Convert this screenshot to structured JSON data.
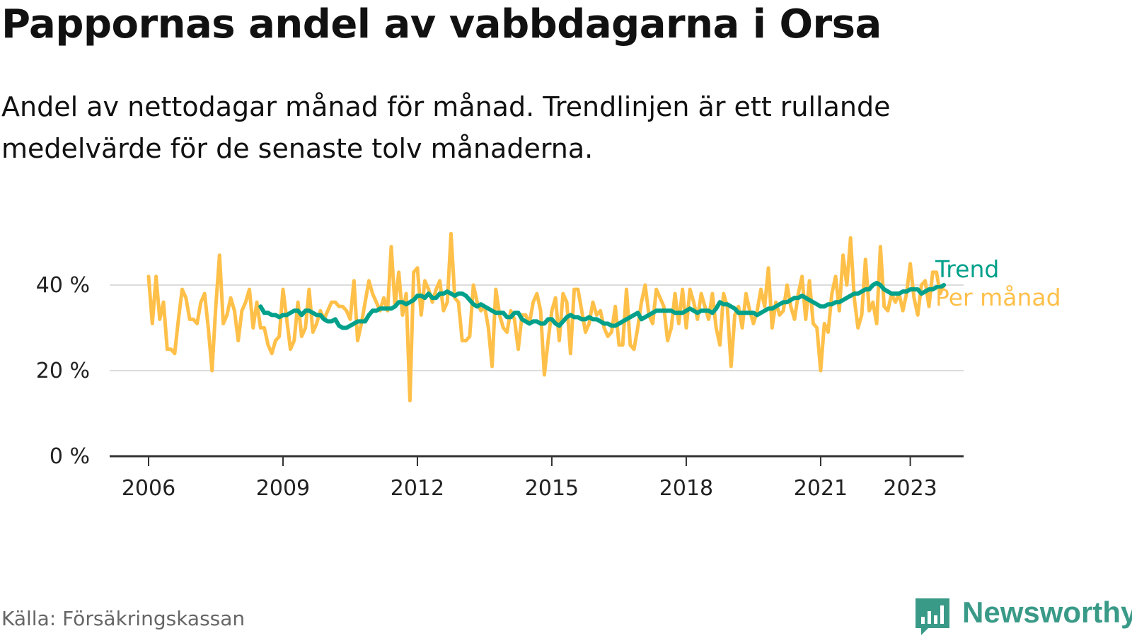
{
  "title": "Pappornas andel av vabbdagarna i Orsa",
  "subtitle": "Andel av nettodagar månad för månad. Trendlinjen är ett rullande medelvärde för de senaste tolv månaderna.",
  "source": "Källa: Försäkringskassan",
  "brand": {
    "name": "Newsworthy",
    "icon": "bar-chart-speech-bubble-icon",
    "color": "#3a9a88"
  },
  "chart_data": {
    "type": "line",
    "x_start": "2006-01",
    "x_end": "2023-07",
    "x_ticks": [
      "2006",
      "2009",
      "2012",
      "2015",
      "2018",
      "2021",
      "2023"
    ],
    "y_ticks": [
      "0 %",
      "20 %",
      "40 %"
    ],
    "ylim": [
      0,
      40
    ],
    "grid": true,
    "legend_placement": "line-end-right",
    "series": [
      {
        "name": "Per månad",
        "color": "#ffc04a",
        "values": [
          42,
          31,
          42,
          32,
          36,
          25,
          25,
          24,
          32,
          39,
          37,
          32,
          32,
          31,
          36,
          38,
          30,
          20,
          35,
          47,
          31,
          33,
          37,
          34,
          27,
          34,
          36,
          39,
          30,
          36,
          30,
          30,
          26,
          24,
          27,
          28,
          39,
          32,
          25,
          27,
          36,
          28,
          30,
          39,
          29,
          31,
          34,
          32,
          34,
          36,
          36,
          35,
          35,
          34,
          32,
          41,
          27,
          31,
          36,
          41,
          38,
          36,
          34,
          37,
          34,
          49,
          35,
          43,
          33,
          38,
          13,
          43,
          44,
          33,
          41,
          39,
          36,
          39,
          41,
          34,
          36,
          52,
          37,
          36,
          27,
          27,
          28,
          40,
          36,
          34,
          35,
          30,
          21,
          39,
          33,
          30,
          29,
          34,
          32,
          25,
          33,
          33,
          31,
          36,
          38,
          34,
          19,
          27,
          34,
          37,
          27,
          38,
          36,
          24,
          39,
          39,
          34,
          29,
          31,
          36,
          33,
          34,
          30,
          28,
          29,
          35,
          26,
          26,
          39,
          26,
          25,
          30,
          36,
          40,
          33,
          31,
          39,
          37,
          35,
          27,
          30,
          38,
          31,
          39,
          30,
          39,
          36,
          32,
          38,
          35,
          32,
          38,
          30,
          26,
          38,
          35,
          21,
          33,
          35,
          30,
          38,
          34,
          31,
          34,
          39,
          35,
          44,
          30,
          36,
          33,
          34,
          40,
          35,
          32,
          38,
          42,
          32,
          41,
          31,
          30,
          20,
          31,
          29,
          38,
          42,
          34,
          47,
          40,
          51,
          37,
          30,
          33,
          46,
          34,
          36,
          31,
          49,
          35,
          34,
          38,
          36,
          38,
          34,
          38,
          45,
          37,
          33,
          40,
          41,
          35,
          43,
          43,
          38,
          40
        ]
      },
      {
        "name": "Trend",
        "color": "#00a08a",
        "values": [
          35,
          33.5,
          33.5,
          33,
          33,
          32.5,
          33,
          33,
          33.5,
          34,
          34,
          33,
          34,
          34,
          33.5,
          33,
          33,
          32,
          31.5,
          31.5,
          32,
          30.5,
          30,
          30,
          30.5,
          31,
          31.5,
          31.5,
          31.5,
          33,
          34,
          34,
          34.5,
          34.5,
          34.5,
          34.5,
          35,
          36,
          36,
          35.5,
          36,
          36.5,
          37.5,
          37.5,
          37,
          38,
          37,
          37,
          38,
          38,
          38.5,
          38,
          37.5,
          38,
          38,
          37.5,
          36.5,
          35.5,
          35,
          35.5,
          35,
          34.5,
          34,
          33.5,
          33.5,
          33.5,
          32.5,
          32.5,
          33.5,
          33.5,
          32,
          31.5,
          31,
          31.5,
          31.5,
          31,
          31,
          32,
          32,
          31,
          30.5,
          31.5,
          32.5,
          33,
          32.5,
          32.5,
          32,
          32,
          32.5,
          32,
          32,
          31.5,
          31,
          31,
          30.5,
          30.5,
          31,
          31.5,
          32,
          32.5,
          33,
          33.5,
          32,
          32.5,
          33,
          33.5,
          34,
          34,
          34,
          34,
          34,
          33.5,
          33.5,
          33.5,
          34,
          34.5,
          34,
          33.5,
          34,
          34,
          34,
          33.5,
          34.5,
          36,
          35.5,
          35.5,
          35,
          34.5,
          33.5,
          33.5,
          33.5,
          33.5,
          33.5,
          33,
          33.5,
          34,
          34.5,
          34.5,
          35,
          35.5,
          36,
          36,
          36.5,
          37,
          37,
          37.5,
          37,
          36.5,
          36,
          35.5,
          35,
          35,
          35.5,
          35.5,
          36,
          36,
          36.5,
          37,
          37.5,
          38,
          38,
          38.5,
          39,
          39,
          40,
          40.5,
          40,
          39,
          38.5,
          38,
          38,
          38,
          38.5,
          38.5,
          39,
          39,
          39,
          38,
          38.5,
          39,
          39,
          39.5,
          39.5,
          40
        ]
      }
    ]
  }
}
